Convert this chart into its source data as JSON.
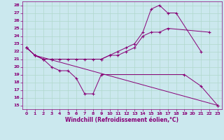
{
  "xlabel": "Windchill (Refroidissement éolien,°C)",
  "xlim": [
    -0.5,
    23.5
  ],
  "ylim": [
    14.5,
    28.5
  ],
  "xticks": [
    0,
    1,
    2,
    3,
    4,
    5,
    6,
    7,
    8,
    9,
    10,
    11,
    12,
    13,
    14,
    15,
    16,
    17,
    18,
    19,
    20,
    21,
    22,
    23
  ],
  "yticks": [
    15,
    16,
    17,
    18,
    19,
    20,
    21,
    22,
    23,
    24,
    25,
    26,
    27,
    28
  ],
  "bg_color": "#cbe8ee",
  "line_color": "#880077",
  "grid_color": "#b0d8cc",
  "line1_x": [
    0,
    1,
    2,
    3,
    4,
    5,
    6,
    7,
    8,
    9,
    19,
    21,
    23
  ],
  "line1_y": [
    22.5,
    21.5,
    21.0,
    20.0,
    19.5,
    19.5,
    18.5,
    16.5,
    16.5,
    19.0,
    19.0,
    17.5,
    15.0
  ],
  "line2_x": [
    0,
    1,
    2,
    3,
    9,
    10,
    11,
    12,
    13,
    14,
    15,
    16,
    17,
    18,
    21
  ],
  "line2_y": [
    22.5,
    21.5,
    21.0,
    21.0,
    21.0,
    21.5,
    22.0,
    22.5,
    23.0,
    24.5,
    27.5,
    28.0,
    27.0,
    27.0,
    22.0
  ],
  "line3_x": [
    0,
    1,
    2,
    3,
    4,
    5,
    6,
    7,
    8,
    9,
    10,
    11,
    12,
    13,
    14,
    15,
    16,
    17,
    22
  ],
  "line3_y": [
    22.5,
    21.5,
    21.0,
    21.0,
    21.0,
    21.0,
    21.0,
    21.0,
    21.0,
    21.0,
    21.5,
    21.5,
    22.0,
    22.5,
    24.0,
    24.5,
    24.5,
    25.0,
    24.5
  ],
  "line4_x": [
    0,
    1,
    23
  ],
  "line4_y": [
    22.5,
    21.5,
    15.0
  ]
}
